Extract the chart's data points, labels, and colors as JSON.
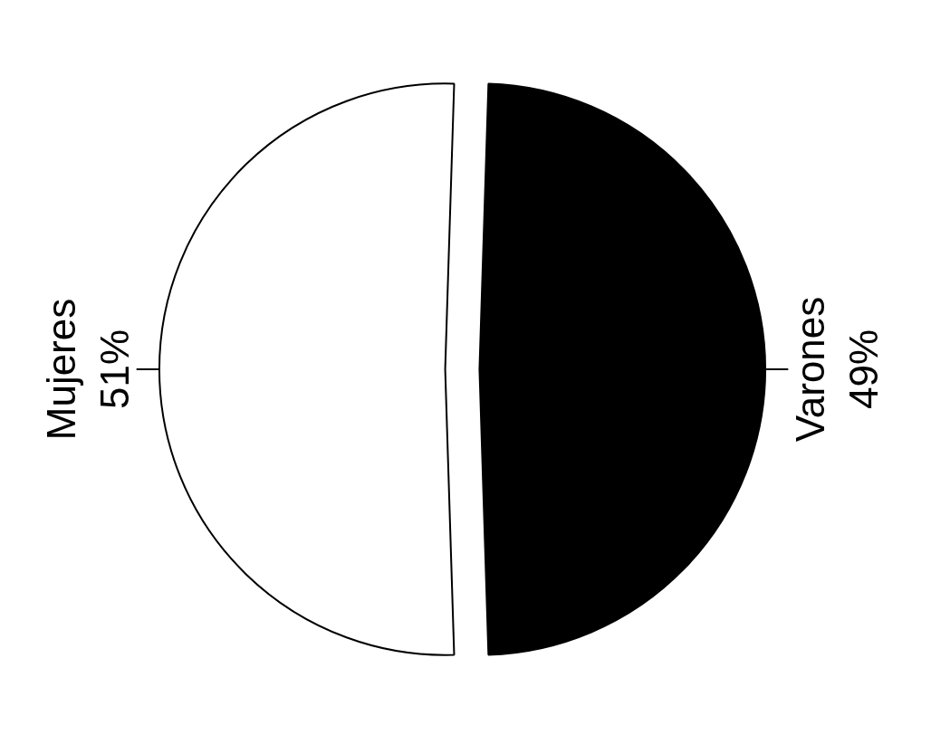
{
  "chart_data": {
    "type": "pie",
    "categories": [
      "Mujeres",
      "Varones"
    ],
    "values": [
      51,
      49
    ],
    "colors": [
      "#ffffff",
      "#000000"
    ],
    "value_labels": [
      "51%",
      "49%"
    ]
  }
}
